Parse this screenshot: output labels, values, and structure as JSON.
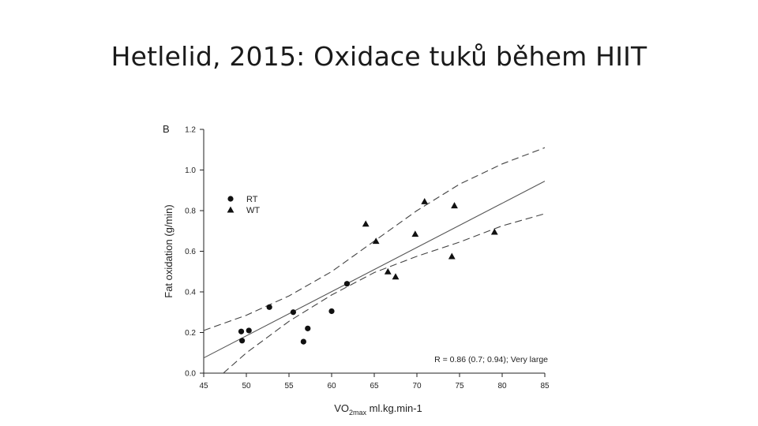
{
  "slide": {
    "title": "Hetlelid, 2015: Oxidace tuků během HIIT"
  },
  "chart_data": {
    "type": "scatter",
    "panel_label": "B",
    "xlabel": "VO",
    "xlabel_sub": "2max",
    "xlabel_suffix": " ml.kg.min-1",
    "ylabel": "Fat oxidation (g/min)",
    "xlim": [
      45,
      85
    ],
    "ylim": [
      0.0,
      1.2
    ],
    "x_ticks": [
      45,
      50,
      55,
      60,
      65,
      70,
      75,
      80,
      85
    ],
    "x_tick_labels": [
      "45",
      "50",
      "55",
      "60",
      "65",
      "70",
      "75",
      "80",
      "85"
    ],
    "y_ticks": [
      0.0,
      0.2,
      0.4,
      0.6,
      0.8,
      1.0,
      1.2
    ],
    "y_tick_labels": [
      "0.0",
      "0.2",
      "0.4",
      "0.6",
      "0.8",
      "1.0",
      "1.2"
    ],
    "grid": false,
    "legend_position": "top-left",
    "series": [
      {
        "name": "RT",
        "marker": "circle",
        "points": [
          [
            49.4,
            0.205
          ],
          [
            49.5,
            0.16
          ],
          [
            50.3,
            0.21
          ],
          [
            52.7,
            0.325
          ],
          [
            55.5,
            0.3
          ],
          [
            56.7,
            0.155
          ],
          [
            57.2,
            0.22
          ],
          [
            60.0,
            0.305
          ],
          [
            61.8,
            0.44
          ]
        ]
      },
      {
        "name": "WT",
        "marker": "triangle",
        "points": [
          [
            64.0,
            0.735
          ],
          [
            65.2,
            0.65
          ],
          [
            66.6,
            0.5
          ],
          [
            67.5,
            0.475
          ],
          [
            69.8,
            0.685
          ],
          [
            70.9,
            0.845
          ],
          [
            74.1,
            0.575
          ],
          [
            74.4,
            0.825
          ],
          [
            79.1,
            0.695
          ]
        ]
      }
    ],
    "regression": {
      "style": "solid",
      "points": [
        [
          45,
          0.075
        ],
        [
          85,
          0.945
        ]
      ]
    },
    "confidence_band": {
      "style": "dashed",
      "upper": [
        [
          45,
          0.21
        ],
        [
          50,
          0.285
        ],
        [
          55,
          0.38
        ],
        [
          60,
          0.5
        ],
        [
          65,
          0.65
        ],
        [
          70,
          0.8
        ],
        [
          75,
          0.93
        ],
        [
          80,
          1.03
        ],
        [
          85,
          1.11
        ]
      ],
      "lower": [
        [
          47.3,
          0.0
        ],
        [
          50,
          0.1
        ],
        [
          55,
          0.255
        ],
        [
          60,
          0.385
        ],
        [
          65,
          0.495
        ],
        [
          70,
          0.575
        ],
        [
          75,
          0.645
        ],
        [
          80,
          0.725
        ],
        [
          85,
          0.785
        ]
      ]
    },
    "annotation": "R = 0.86 (0.7; 0.94); Very large"
  }
}
